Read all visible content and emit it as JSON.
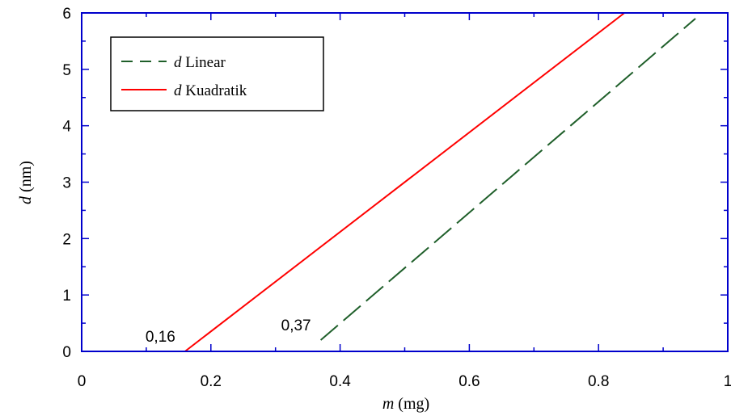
{
  "chart_data": {
    "type": "line",
    "xlabel": {
      "var": "m",
      "unit": " (mg)"
    },
    "ylabel": {
      "var": "d",
      "unit": " (nm)"
    },
    "xlim": [
      0,
      1
    ],
    "ylim": [
      0,
      6
    ],
    "x_ticks": [
      "0",
      "0.2",
      "0.4",
      "0.6",
      "0.8",
      "1"
    ],
    "y_ticks": [
      "0",
      "1",
      "2",
      "3",
      "4",
      "5",
      "6"
    ],
    "grid": false,
    "legend_position": "top-left",
    "series": [
      {
        "name": "Linear",
        "name_var": "d",
        "color": "#1f5f2a",
        "style": "dashed",
        "x": [
          0.37,
          0.95
        ],
        "y": [
          0.2,
          5.9
        ]
      },
      {
        "name": "Kuadratik",
        "name_var": "d",
        "color": "#ff0000",
        "style": "solid",
        "x": [
          0.16,
          0.84
        ],
        "y": [
          0.0,
          6.0
        ]
      }
    ],
    "annotations": [
      {
        "text": "0,16",
        "x": 0.16,
        "y": 0
      },
      {
        "text": "0,37",
        "x": 0.37,
        "y": 0.2
      }
    ]
  }
}
